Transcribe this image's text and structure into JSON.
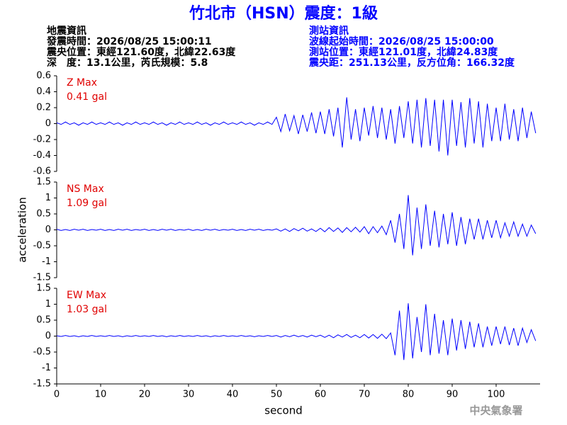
{
  "header": {
    "title": "竹北市（HSN）震度：1級",
    "left": [
      "地震資訊",
      "發震時間：2026/08/25 15:00:11",
      "震央位置：東經121.60度，北緯22.63度",
      "深　度：13.1公里，芮氏規模：5.8"
    ],
    "right": [
      "測站資訊",
      "波線起始時間：2026/08/25 15:00:00",
      "測站位置：東經121.01度，北緯24.83度",
      "震央距：251.13公里，反方位角：166.32度"
    ],
    "footer": "中央氣象署"
  },
  "chart_data": [
    {
      "type": "line",
      "annotations": [
        "Z Max",
        "0.41 gal"
      ],
      "x": [
        0,
        1,
        2,
        3,
        4,
        5,
        6,
        7,
        8,
        9,
        10,
        11,
        12,
        13,
        14,
        15,
        16,
        17,
        18,
        19,
        20,
        21,
        22,
        23,
        24,
        25,
        26,
        27,
        28,
        29,
        30,
        31,
        32,
        33,
        34,
        35,
        36,
        37,
        38,
        39,
        40,
        41,
        42,
        43,
        44,
        45,
        46,
        47,
        48,
        49,
        50,
        51,
        52,
        53,
        54,
        55,
        56,
        57,
        58,
        59,
        60,
        61,
        62,
        63,
        64,
        65,
        66,
        67,
        68,
        69,
        70,
        71,
        72,
        73,
        74,
        75,
        76,
        77,
        78,
        79,
        80,
        81,
        82,
        83,
        84,
        85,
        86,
        87,
        88,
        89,
        90,
        91,
        92,
        93,
        94,
        95,
        96,
        97,
        98,
        99,
        100,
        101,
        102,
        103,
        104,
        105,
        106,
        107,
        108,
        109
      ],
      "series": [
        {
          "color": "#0000ff",
          "values": [
            0.01,
            -0.01,
            0.02,
            -0.01,
            0.01,
            -0.02,
            0.01,
            -0.01,
            0.02,
            -0.01,
            0.01,
            -0.01,
            0.02,
            -0.01,
            0.01,
            -0.02,
            0.01,
            -0.01,
            0.02,
            -0.01,
            0.01,
            -0.01,
            0.02,
            -0.01,
            0.01,
            -0.02,
            0.01,
            -0.01,
            0.02,
            -0.01,
            0.01,
            -0.01,
            0.02,
            -0.01,
            0.01,
            -0.02,
            0.01,
            -0.01,
            0.02,
            -0.01,
            0.01,
            -0.01,
            0.02,
            -0.01,
            0.01,
            -0.02,
            0.01,
            -0.01,
            0.02,
            -0.01,
            0.08,
            -0.1,
            0.12,
            -0.09,
            0.1,
            -0.13,
            0.11,
            -0.1,
            0.14,
            -0.12,
            0.15,
            -0.13,
            0.18,
            -0.16,
            0.2,
            -0.3,
            0.33,
            -0.2,
            0.18,
            -0.22,
            0.2,
            -0.15,
            0.22,
            -0.18,
            0.2,
            -0.2,
            0.18,
            -0.25,
            0.22,
            -0.18,
            0.28,
            -0.25,
            0.3,
            -0.3,
            0.32,
            -0.28,
            0.3,
            -0.35,
            0.3,
            -0.4,
            0.3,
            -0.28,
            0.27,
            -0.3,
            0.32,
            -0.25,
            0.28,
            -0.3,
            0.25,
            -0.22,
            0.2,
            -0.22,
            0.25,
            -0.2,
            0.18,
            -0.22,
            0.2,
            -0.18,
            0.15,
            -0.12
          ]
        }
      ],
      "xlim": [
        0,
        110
      ],
      "ylim": [
        -0.6,
        0.6
      ],
      "yticks": [
        -0.6,
        -0.4,
        -0.2,
        0,
        0.2,
        0.4,
        0.6
      ]
    },
    {
      "type": "line",
      "annotations": [
        "NS Max",
        "1.09 gal"
      ],
      "y_label": "acceleration",
      "x": [
        0,
        1,
        2,
        3,
        4,
        5,
        6,
        7,
        8,
        9,
        10,
        11,
        12,
        13,
        14,
        15,
        16,
        17,
        18,
        19,
        20,
        21,
        22,
        23,
        24,
        25,
        26,
        27,
        28,
        29,
        30,
        31,
        32,
        33,
        34,
        35,
        36,
        37,
        38,
        39,
        40,
        41,
        42,
        43,
        44,
        45,
        46,
        47,
        48,
        49,
        50,
        51,
        52,
        53,
        54,
        55,
        56,
        57,
        58,
        59,
        60,
        61,
        62,
        63,
        64,
        65,
        66,
        67,
        68,
        69,
        70,
        71,
        72,
        73,
        74,
        75,
        76,
        77,
        78,
        79,
        80,
        81,
        82,
        83,
        84,
        85,
        86,
        87,
        88,
        89,
        90,
        91,
        92,
        93,
        94,
        95,
        96,
        97,
        98,
        99,
        100,
        101,
        102,
        103,
        104,
        105,
        106,
        107,
        108,
        109
      ],
      "series": [
        {
          "color": "#0000ff",
          "values": [
            0.02,
            -0.02,
            0.01,
            -0.02,
            0.02,
            -0.01,
            0.02,
            -0.02,
            0.01,
            -0.01,
            0.02,
            -0.02,
            0.01,
            -0.02,
            0.02,
            -0.01,
            0.02,
            -0.02,
            0.01,
            -0.01,
            0.02,
            -0.02,
            0.01,
            -0.02,
            0.02,
            -0.01,
            0.02,
            -0.02,
            0.01,
            -0.01,
            0.02,
            -0.02,
            0.01,
            -0.02,
            0.02,
            -0.01,
            0.02,
            -0.02,
            0.01,
            -0.01,
            0.02,
            -0.02,
            0.01,
            -0.02,
            0.02,
            -0.01,
            0.02,
            -0.02,
            0.01,
            -0.01,
            0.03,
            -0.04,
            0.03,
            -0.05,
            0.04,
            -0.03,
            0.05,
            -0.04,
            0.03,
            -0.05,
            0.05,
            -0.06,
            0.07,
            -0.05,
            0.06,
            -0.08,
            0.07,
            -0.06,
            0.08,
            -0.07,
            0.1,
            -0.12,
            0.1,
            -0.09,
            0.12,
            -0.15,
            0.3,
            -0.4,
            0.5,
            -0.6,
            1.09,
            -0.8,
            0.7,
            -0.6,
            0.8,
            -0.5,
            0.6,
            -0.55,
            0.5,
            -0.45,
            0.55,
            -0.5,
            0.4,
            -0.45,
            0.35,
            -0.3,
            0.35,
            -0.3,
            0.3,
            -0.25,
            0.3,
            -0.25,
            0.22,
            -0.2,
            0.25,
            -0.2,
            0.18,
            -0.2,
            0.15,
            -0.12
          ]
        }
      ],
      "xlim": [
        0,
        110
      ],
      "ylim": [
        -1.5,
        1.5
      ],
      "yticks": [
        -1.5,
        -1,
        -0.5,
        0,
        0.5,
        1,
        1.5
      ]
    },
    {
      "type": "line",
      "annotations": [
        "EW Max",
        "1.03 gal"
      ],
      "x_label": "second",
      "x": [
        0,
        1,
        2,
        3,
        4,
        5,
        6,
        7,
        8,
        9,
        10,
        11,
        12,
        13,
        14,
        15,
        16,
        17,
        18,
        19,
        20,
        21,
        22,
        23,
        24,
        25,
        26,
        27,
        28,
        29,
        30,
        31,
        32,
        33,
        34,
        35,
        36,
        37,
        38,
        39,
        40,
        41,
        42,
        43,
        44,
        45,
        46,
        47,
        48,
        49,
        50,
        51,
        52,
        53,
        54,
        55,
        56,
        57,
        58,
        59,
        60,
        61,
        62,
        63,
        64,
        65,
        66,
        67,
        68,
        69,
        70,
        71,
        72,
        73,
        74,
        75,
        76,
        77,
        78,
        79,
        80,
        81,
        82,
        83,
        84,
        85,
        86,
        87,
        88,
        89,
        90,
        91,
        92,
        93,
        94,
        95,
        96,
        97,
        98,
        99,
        100,
        101,
        102,
        103,
        104,
        105,
        106,
        107,
        108,
        109
      ],
      "series": [
        {
          "color": "#0000ff",
          "values": [
            0.01,
            -0.01,
            0.02,
            -0.01,
            0.01,
            -0.02,
            0.01,
            -0.01,
            0.02,
            -0.01,
            0.01,
            -0.01,
            0.02,
            -0.01,
            0.01,
            -0.02,
            0.01,
            -0.01,
            0.02,
            -0.01,
            0.01,
            -0.01,
            0.02,
            -0.01,
            0.01,
            -0.02,
            0.01,
            -0.01,
            0.02,
            -0.01,
            0.01,
            -0.01,
            0.02,
            -0.01,
            0.01,
            -0.02,
            0.01,
            -0.01,
            0.02,
            -0.01,
            0.01,
            -0.01,
            0.02,
            -0.01,
            0.01,
            -0.02,
            0.01,
            -0.01,
            0.02,
            -0.01,
            0.02,
            -0.03,
            0.02,
            -0.02,
            0.03,
            -0.02,
            0.02,
            -0.03,
            0.03,
            -0.02,
            0.03,
            -0.04,
            0.03,
            -0.05,
            0.04,
            -0.03,
            0.05,
            -0.04,
            0.03,
            -0.05,
            0.05,
            -0.06,
            0.05,
            -0.07,
            0.06,
            -0.08,
            0.1,
            -0.6,
            0.8,
            -0.75,
            1.03,
            -0.7,
            0.6,
            -0.5,
            1.0,
            -0.6,
            0.7,
            -0.55,
            0.5,
            -0.6,
            0.55,
            -0.45,
            0.5,
            -0.4,
            0.45,
            -0.35,
            0.4,
            -0.35,
            0.3,
            -0.3,
            0.3,
            -0.25,
            0.3,
            -0.28,
            0.25,
            -0.3,
            0.25,
            -0.2,
            0.2,
            -0.15
          ]
        }
      ],
      "xlim": [
        0,
        110
      ],
      "ylim": [
        -1.5,
        1.5
      ],
      "yticks": [
        -1.5,
        -1,
        -0.5,
        0,
        0.5,
        1,
        1.5
      ],
      "xticks": [
        0,
        10,
        20,
        30,
        40,
        50,
        60,
        70,
        80,
        90,
        100
      ]
    }
  ]
}
